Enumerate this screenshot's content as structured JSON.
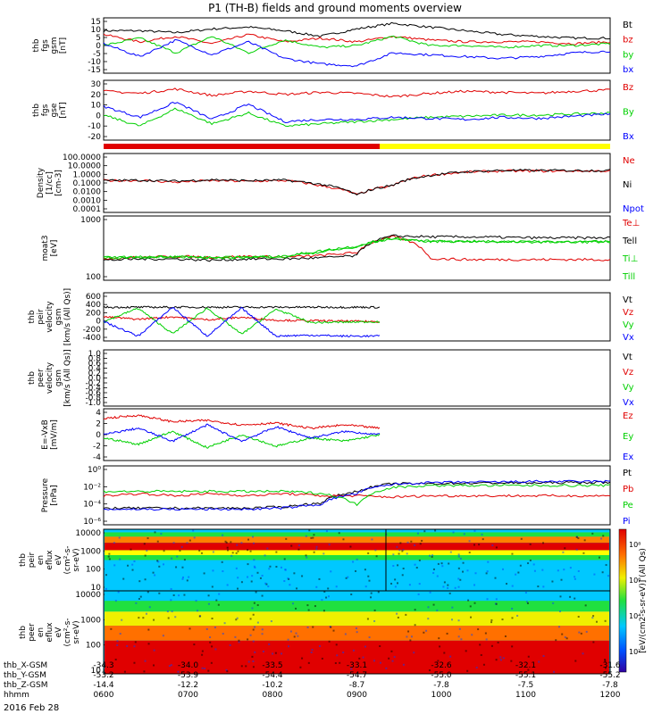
{
  "title": "P1 (TH-B) fields and ground moments overview",
  "colors": {
    "black": "#000000",
    "red": "#e00000",
    "green": "#00d000",
    "blue": "#0000ff",
    "yellow": "#ffff00"
  },
  "chart_data": [
    {
      "type": "line",
      "ylabel": [
        "thb",
        "fgs",
        "gsm",
        "[nT]"
      ],
      "yticks": [
        "15",
        "10",
        "5",
        "0",
        "-5",
        "-10",
        "-15"
      ],
      "ylim": [
        -15,
        15
      ],
      "series": [
        {
          "name": "Bt",
          "color": "#000000",
          "values": [
            8,
            8,
            7,
            9,
            10,
            8,
            5,
            9,
            12,
            10,
            8,
            6,
            5,
            4,
            4
          ]
        },
        {
          "name": "bz",
          "color": "#e00000",
          "values": [
            6,
            2,
            5,
            1,
            6,
            2,
            4,
            2,
            5,
            3,
            2,
            2,
            2,
            1,
            2
          ]
        },
        {
          "name": "by",
          "color": "#00d000",
          "values": [
            0,
            4,
            -4,
            5,
            -4,
            3,
            -1,
            0,
            5,
            0,
            0,
            -1,
            0,
            0,
            1
          ]
        },
        {
          "name": "bx",
          "color": "#0000ff",
          "values": [
            1,
            -6,
            3,
            -5,
            2,
            -7,
            -10,
            -11,
            -4,
            -5,
            -6,
            -7,
            -6,
            -4,
            -3
          ]
        }
      ]
    },
    {
      "type": "line",
      "ylabel": [
        "thb",
        "fgs",
        "gse",
        "[nT]"
      ],
      "yticks": [
        "30",
        "20",
        "10",
        "0",
        "-10",
        "-20"
      ],
      "ylim": [
        -25,
        30
      ],
      "series": [
        {
          "name": "Bz",
          "color": "#e00000",
          "values": [
            20,
            18,
            22,
            16,
            20,
            17,
            19,
            18,
            15,
            18,
            20,
            19,
            18,
            20,
            21
          ]
        },
        {
          "name": "By",
          "color": "#00d000",
          "values": [
            -2,
            -12,
            4,
            -10,
            0,
            -12,
            -10,
            -8,
            -6,
            -4,
            -3,
            -2,
            -2,
            -1,
            0
          ]
        },
        {
          "name": "Bx",
          "color": "#0000ff",
          "values": [
            6,
            -4,
            10,
            -6,
            8,
            -8,
            -6,
            -6,
            -4,
            -5,
            -6,
            -4,
            -5,
            -3,
            -1
          ]
        }
      ]
    },
    {
      "type": "line",
      "ylabel": [
        "Density",
        "[1/cc]",
        "[cm-3]"
      ],
      "yticks": [
        "100.0000",
        "10.0000",
        "1.0000",
        "0.1000",
        "0.0100",
        "0.0010",
        "0.0001"
      ],
      "log": true,
      "series": [
        {
          "name": "Ne",
          "color": "#e00000",
          "values": [
            2,
            2,
            1.6,
            2,
            1.8,
            2,
            1,
            0.3,
            1,
            4,
            6,
            7,
            7,
            7,
            7
          ]
        },
        {
          "name": "Ni",
          "color": "#000000",
          "values": [
            1.5,
            1.6,
            1.4,
            1.7,
            1.5,
            1.6,
            0.9,
            0.2,
            0.8,
            3,
            5,
            6,
            6,
            6,
            6
          ]
        },
        {
          "name": "Npot",
          "color": "#0000ff",
          "values": []
        }
      ]
    },
    {
      "type": "line",
      "ylabel": [
        "moat3",
        "[eV]"
      ],
      "yticks": [
        "1000",
        "100"
      ],
      "log": true,
      "series": [
        {
          "name": "Te⊥",
          "color": "#e00000",
          "values": [
            80,
            90,
            100,
            90,
            100,
            90,
            110,
            150,
            900,
            80,
            70,
            70,
            70,
            70,
            70
          ]
        },
        {
          "name": "Tell",
          "color": "#000000",
          "values": [
            60,
            70,
            70,
            60,
            70,
            70,
            80,
            100,
            1000,
            900,
            900,
            850,
            800,
            800,
            800
          ]
        },
        {
          "name": "Ti⊥",
          "color": "#00d000",
          "values": [
            150,
            160,
            170,
            150,
            160,
            170,
            300,
            500,
            1100,
            800,
            800,
            780,
            760,
            760,
            760
          ]
        },
        {
          "name": "Till",
          "color": "#00d000",
          "values": [
            140,
            150,
            160,
            140,
            150,
            160,
            250,
            400,
            1000,
            750,
            750,
            730,
            720,
            720,
            720
          ]
        }
      ]
    },
    {
      "type": "line",
      "ylabel": [
        "thb",
        "peir",
        "velocity",
        "gsm",
        "[km/s (All Qs)]"
      ],
      "yticks": [
        "600",
        "400",
        "200",
        "0",
        "-200",
        "-400"
      ],
      "ylim": [
        -400,
        600
      ],
      "series": [
        {
          "name": "Vt",
          "color": "#000000",
          "values": [
            300,
            300,
            300,
            300,
            300,
            300,
            300,
            300,
            300
          ]
        },
        {
          "name": "Vz",
          "color": "#e00000",
          "values": [
            100,
            50,
            100,
            40,
            90,
            30,
            20,
            10,
            0
          ]
        },
        {
          "name": "Vy",
          "color": "#00d000",
          "values": [
            0,
            280,
            -250,
            280,
            -260,
            260,
            -20,
            -10,
            0
          ]
        },
        {
          "name": "Vx",
          "color": "#0000ff",
          "values": [
            0,
            -300,
            300,
            -300,
            280,
            -300,
            -280,
            -300,
            -300
          ]
        }
      ]
    },
    {
      "type": "line",
      "ylabel": [
        "thb",
        "peer",
        "velocity",
        "gsm",
        "[km/s (All Qs)]"
      ],
      "yticks": [
        "1.0",
        "0.8",
        "0.6",
        "0.4",
        "0.2",
        "0.0",
        "-0.2",
        "-0.4",
        "-0.6",
        "-0.8",
        "-1.0"
      ],
      "ylim": [
        -1,
        1
      ],
      "series": [
        {
          "name": "Vt",
          "color": "#000000",
          "values": []
        },
        {
          "name": "Vz",
          "color": "#e00000",
          "values": []
        },
        {
          "name": "Vy",
          "color": "#00d000",
          "values": []
        },
        {
          "name": "Vx",
          "color": "#0000ff",
          "values": []
        }
      ]
    },
    {
      "type": "line",
      "ylabel": [
        "E=-VxB",
        "[mV/m]"
      ],
      "yticks": [
        "4",
        "2",
        "0",
        "-2",
        "-4"
      ],
      "ylim": [
        -4,
        4
      ],
      "series": [
        {
          "name": "Ez",
          "color": "#e00000",
          "values": [
            2.5,
            3,
            2,
            2.2,
            1.5,
            1.8,
            1,
            1.5,
            1
          ]
        },
        {
          "name": "Ey",
          "color": "#00d000",
          "values": [
            -0.5,
            -1.5,
            0.5,
            -2,
            0,
            -1.8,
            -0.5,
            -1,
            0
          ]
        },
        {
          "name": "Ex",
          "color": "#0000ff",
          "values": [
            0,
            1,
            -1,
            1.5,
            -1,
            1.2,
            -0.5,
            0.5,
            0
          ]
        }
      ]
    },
    {
      "type": "line",
      "ylabel": [
        "Pressure",
        "[nPa]"
      ],
      "yticks": [
        "10⁰",
        "10⁻²",
        "10⁻⁴",
        "10⁻⁶"
      ],
      "log": true,
      "series": [
        {
          "name": "Pt",
          "color": "#000000",
          "values": [
            0.01,
            0.01,
            0.01,
            0.01,
            0.01,
            0.012,
            0.02,
            0.1,
            0.3,
            0.3,
            0.32,
            0.33,
            0.33,
            0.35,
            0.35
          ]
        },
        {
          "name": "Pb",
          "color": "#e00000",
          "values": [
            0.01,
            0.012,
            0.01,
            0.012,
            0.01,
            0.012,
            0.01,
            0.01,
            0.009,
            0.01,
            0.01,
            0.01,
            0.01,
            0.01,
            0.01
          ]
        },
        {
          "name": "Pe",
          "color": "#00d000",
          "values": [
            0.005,
            0.005,
            0.005,
            0.005,
            0.005,
            0.005,
            0.004,
            0.001,
            0.008,
            0.01,
            0.01,
            0.01,
            0.01,
            0.01,
            0.01
          ]
        },
        {
          "name": "Pi",
          "color": "#0000ff",
          "values": [
            0.005,
            0.005,
            0.005,
            0.005,
            0.005,
            0.006,
            0.01,
            0.05,
            0.2,
            0.25,
            0.27,
            0.28,
            0.3,
            0.3,
            0.3
          ]
        }
      ]
    },
    {
      "type": "heatmap",
      "ylabel": [
        "thb",
        "peir",
        "en",
        "eflux",
        "eV",
        "(cm²-s-",
        "sr-eV)"
      ],
      "yticks": [
        "10000",
        "1000",
        "100",
        "10"
      ]
    },
    {
      "type": "heatmap",
      "ylabel": [
        "thb",
        "peer",
        "en",
        "eflux",
        "eV",
        "(cm²-s-",
        "sr-eV)"
      ],
      "yticks": [
        "10000",
        "1000",
        "100",
        "10"
      ]
    }
  ],
  "colorbar": {
    "label": "[eV/(cm2-s-sr-eV)] (All Qs)",
    "ticks": [
      "10⁸",
      "10⁶",
      "10⁴",
      "10²"
    ]
  },
  "xaxis": {
    "rows": [
      {
        "label": "thb_X-GSM",
        "values": [
          "-34.3",
          "-34.0",
          "-33.5",
          "-33.1",
          "-32.6",
          "-32.1",
          "-31.6"
        ]
      },
      {
        "label": "thb_Y-GSM",
        "values": [
          "-53.2",
          "-53.9",
          "-54.4",
          "-54.7",
          "-55.0",
          "-55.1",
          "-55.2"
        ]
      },
      {
        "label": "thb_Z-GSM",
        "values": [
          "-14.4",
          "-12.2",
          "-10.2",
          "-8.7",
          "-7.8",
          "-7.5",
          "-7.8"
        ]
      },
      {
        "label": "hhmm",
        "values": [
          "0600",
          "0700",
          "0800",
          "0900",
          "1000",
          "1100",
          "1200"
        ]
      }
    ],
    "date": "2016 Feb 28"
  }
}
